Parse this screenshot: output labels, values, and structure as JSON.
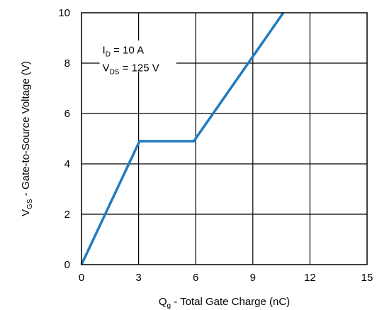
{
  "chart_data": {
    "type": "line",
    "xlabel": {
      "main": "Q",
      "sub": "g",
      "rest": " - Total Gate Charge (nC)"
    },
    "ylabel": {
      "main": "V",
      "sub": "GS",
      "rest": " - Gate-to-Source Voltage (V)"
    },
    "xlim": [
      0,
      15
    ],
    "ylim": [
      0,
      10
    ],
    "x_ticks": [
      0,
      3,
      6,
      9,
      12,
      15
    ],
    "y_ticks": [
      0,
      2,
      4,
      6,
      8,
      10
    ],
    "grid": true,
    "annotations": [
      {
        "main": "I",
        "sub": "D",
        "rest": " = 10 A"
      },
      {
        "main": "V",
        "sub": "DS",
        "rest": " = 125 V"
      }
    ],
    "series": [
      {
        "color": "#1f7cc1",
        "x": [
          0,
          3.05,
          5.9,
          10.6
        ],
        "y": [
          0,
          4.9,
          4.9,
          10
        ]
      }
    ]
  }
}
